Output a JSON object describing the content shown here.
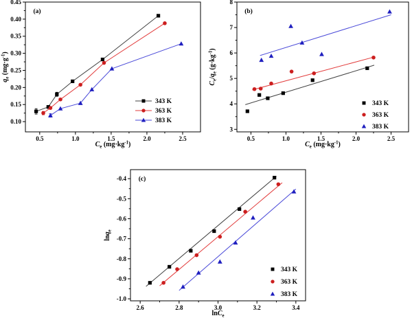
{
  "figure": {
    "background": "#ffffff",
    "panel_labels": [
      "(a)",
      "(b)",
      "(c)"
    ]
  },
  "chart_data": [
    {
      "id": "a",
      "type": "scatter",
      "panel_label": "(a)",
      "xlabel": "*C*~e~ (mg·kg^-1^)",
      "ylabel": "*q*~e~ (mg·g^-1^)",
      "xlim": [
        0.3,
        2.75
      ],
      "ylim": [
        0.07,
        0.45
      ],
      "grid": false,
      "legend_position": "bottom-right",
      "xticks": {
        "values": [
          0.5,
          1.0,
          1.5,
          2.0,
          2.5
        ],
        "labels": [
          "0.5",
          "1.0",
          "1.5",
          "2.0",
          "2.5"
        ],
        "minor": [
          0.75,
          1.25,
          1.75,
          2.25
        ]
      },
      "yticks": {
        "values": [
          0.1,
          0.15,
          0.2,
          0.25,
          0.3,
          0.35,
          0.4,
          0.45
        ],
        "labels": [
          "0.10",
          "0.15",
          "0.20",
          "0.25",
          "0.30",
          "0.35",
          "0.40",
          "0.45"
        ],
        "minor": [
          0.125,
          0.175,
          0.225,
          0.275,
          0.325,
          0.375,
          0.425
        ]
      },
      "series": [
        {
          "name": "343 K",
          "marker": "square",
          "color": "#000000",
          "line_color": "#404040",
          "connect": true,
          "x": [
            0.45,
            0.62,
            0.74,
            0.96,
            1.38,
            2.16
          ],
          "y": [
            0.13,
            0.143,
            0.18,
            0.218,
            0.282,
            0.41
          ],
          "yerr": [
            0.008,
            0.004,
            0.006,
            0,
            0,
            0
          ]
        },
        {
          "name": "363 K",
          "marker": "circle",
          "color": "#cc1f1f",
          "line_color": "#e23b3b",
          "connect": true,
          "x": [
            0.55,
            0.65,
            0.79,
            1.07,
            1.4,
            2.25
          ],
          "y": [
            0.125,
            0.14,
            0.165,
            0.208,
            0.272,
            0.388
          ],
          "yerr": [
            0.005,
            0.004,
            0,
            0,
            0,
            0
          ]
        },
        {
          "name": "383 K",
          "marker": "triangle",
          "color": "#1f1fbf",
          "line_color": "#4848d8",
          "connect": true,
          "x": [
            0.65,
            0.79,
            1.07,
            1.23,
            1.51,
            2.48
          ],
          "y": [
            0.118,
            0.138,
            0.154,
            0.194,
            0.255,
            0.328
          ],
          "yerr": [
            0.005,
            0,
            0,
            0,
            0,
            0
          ]
        }
      ]
    },
    {
      "id": "b",
      "type": "scatter",
      "panel_label": "(b)",
      "xlabel": "*C*~e~ (mg·kg^-1^)",
      "ylabel": "*C*~e~/*q*~e~ (g·kg^-1^)",
      "xlim": [
        0.3,
        2.75
      ],
      "ylim": [
        2.9,
        8.0
      ],
      "grid": false,
      "legend_position": "bottom-right",
      "xticks": {
        "values": [
          0.5,
          1.0,
          1.5,
          2.0,
          2.5
        ],
        "labels": [
          "0.5",
          "1.0",
          "1.5",
          "2.0",
          "2.5"
        ],
        "minor": [
          0.75,
          1.25,
          1.75,
          2.25
        ]
      },
      "yticks": {
        "values": [
          3,
          4,
          5,
          6,
          7,
          8
        ],
        "labels": [
          "3",
          "4",
          "5",
          "6",
          "7",
          "8"
        ],
        "minor": [
          3.5,
          4.5,
          5.5,
          6.5,
          7.5
        ]
      },
      "series": [
        {
          "name": "343 K",
          "marker": "square",
          "color": "#000000",
          "line_color": "#404040",
          "connect": false,
          "x": [
            0.45,
            0.62,
            0.74,
            0.96,
            1.38,
            2.16
          ],
          "y": [
            3.71,
            4.35,
            4.22,
            4.42,
            4.93,
            5.4
          ],
          "fit": [
            [
              0.42,
              3.97
            ],
            [
              2.26,
              5.52
            ]
          ]
        },
        {
          "name": "363 K",
          "marker": "circle",
          "color": "#cc1f1f",
          "line_color": "#e23b3b",
          "connect": false,
          "x": [
            0.55,
            0.64,
            0.79,
            1.08,
            1.4,
            2.25
          ],
          "y": [
            4.58,
            4.6,
            4.8,
            5.27,
            5.2,
            5.82
          ],
          "fit": [
            [
              0.52,
              4.55
            ],
            [
              2.27,
              5.85
            ]
          ]
        },
        {
          "name": "383 K",
          "marker": "triangle",
          "color": "#1f1fbf",
          "line_color": "#4848d8",
          "connect": false,
          "x": [
            0.65,
            0.79,
            1.07,
            1.23,
            1.51,
            2.48
          ],
          "y": [
            5.72,
            5.88,
            7.05,
            6.4,
            5.95,
            7.62
          ],
          "fit": [
            [
              0.63,
              5.9
            ],
            [
              2.5,
              7.5
            ]
          ]
        }
      ]
    },
    {
      "id": "c",
      "type": "scatter",
      "panel_label": "(c)",
      "xlabel": "ln*C*~e~",
      "ylabel": "ln*q*~e~",
      "xlim": [
        2.55,
        3.45
      ],
      "ylim": [
        -1.01,
        -0.355
      ],
      "grid": false,
      "legend_position": "bottom-right",
      "xticks": {
        "values": [
          2.6,
          2.8,
          3.0,
          3.2,
          3.4
        ],
        "labels": [
          "2.6",
          "2.8",
          "3.0",
          "3.2",
          "3.4"
        ],
        "minor": [
          2.7,
          2.9,
          3.1,
          3.3
        ]
      },
      "yticks": {
        "values": [
          -1.0,
          -0.9,
          -0.8,
          -0.7,
          -0.6,
          -0.5,
          -0.4
        ],
        "labels": [
          "-1.0",
          "-0.9",
          "-0.8",
          "-0.7",
          "-0.6",
          "-0.5",
          "-0.4"
        ],
        "minor": [
          -0.95,
          -0.85,
          -0.75,
          -0.65,
          -0.55,
          -0.45
        ]
      },
      "series": [
        {
          "name": "343 K",
          "marker": "square",
          "color": "#000000",
          "line_color": "#404040",
          "connect": false,
          "x": [
            2.65,
            2.75,
            2.86,
            2.98,
            3.11,
            3.29
          ],
          "y": [
            -0.92,
            -0.84,
            -0.76,
            -0.662,
            -0.552,
            -0.395
          ],
          "fit": [
            [
              2.63,
              -0.938
            ],
            [
              3.3,
              -0.388
            ]
          ]
        },
        {
          "name": "363 K",
          "marker": "circle",
          "color": "#cc1f1f",
          "line_color": "#e23b3b",
          "connect": false,
          "x": [
            2.72,
            2.79,
            2.89,
            3.01,
            3.14,
            3.31
          ],
          "y": [
            -0.92,
            -0.852,
            -0.782,
            -0.69,
            -0.565,
            -0.428
          ],
          "fit": [
            [
              2.7,
              -0.935
            ],
            [
              3.33,
              -0.42
            ]
          ]
        },
        {
          "name": "383 K",
          "marker": "triangle",
          "color": "#1f1fbf",
          "line_color": "#4848d8",
          "connect": false,
          "x": [
            2.82,
            2.9,
            3.01,
            3.09,
            3.18,
            3.39
          ],
          "y": [
            -0.94,
            -0.87,
            -0.815,
            -0.72,
            -0.595,
            -0.465
          ],
          "fit": [
            [
              2.8,
              -0.958
            ],
            [
              3.4,
              -0.452
            ]
          ]
        }
      ]
    }
  ]
}
